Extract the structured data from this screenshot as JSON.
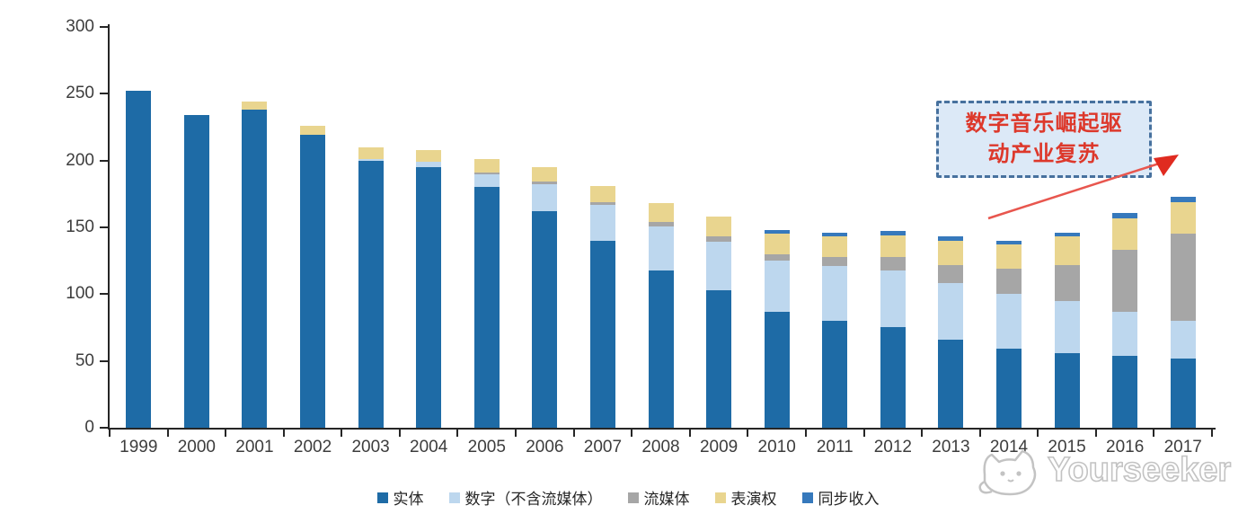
{
  "chart_data": {
    "type": "bar",
    "stacked": true,
    "title": "",
    "xlabel": "",
    "ylabel": "",
    "categories": [
      "1999",
      "2000",
      "2001",
      "2002",
      "2003",
      "2004",
      "2005",
      "2006",
      "2007",
      "2008",
      "2009",
      "2010",
      "2011",
      "2012",
      "2013",
      "2014",
      "2015",
      "2016",
      "2017"
    ],
    "series": [
      {
        "name": "实体",
        "color": "#1e6ba6",
        "values": [
          252,
          234,
          238,
          219,
          200,
          195,
          180,
          162,
          140,
          118,
          103,
          87,
          80,
          75,
          66,
          59,
          56,
          54,
          52
        ]
      },
      {
        "name": "数字（不含流媒体）",
        "color": "#bdd7ee",
        "values": [
          0,
          0,
          0,
          0,
          1,
          4,
          10,
          20,
          27,
          33,
          36,
          38,
          41,
          43,
          42,
          41,
          39,
          33,
          28
        ]
      },
      {
        "name": "流媒体",
        "color": "#a6a6a6",
        "values": [
          0,
          0,
          0,
          0,
          0,
          0,
          1,
          2,
          2,
          3,
          4,
          5,
          7,
          10,
          14,
          19,
          27,
          46,
          65
        ]
      },
      {
        "name": "表演权",
        "color": "#e9d58f",
        "values": [
          0,
          0,
          6,
          7,
          9,
          9,
          10,
          11,
          12,
          14,
          15,
          15,
          15,
          16,
          18,
          18,
          21,
          24,
          24
        ]
      },
      {
        "name": "同步收入",
        "color": "#3679bc",
        "values": [
          0,
          0,
          0,
          0,
          0,
          0,
          0,
          0,
          0,
          0,
          0,
          3,
          3,
          3,
          3,
          3,
          3,
          4,
          4
        ]
      }
    ],
    "ylim": [
      0,
      300
    ],
    "yticks": [
      0,
      50,
      100,
      150,
      200,
      250,
      300
    ],
    "grid": false,
    "legend_position": "bottom"
  },
  "annotation": {
    "line1": "数字音乐崛起驱",
    "line2": "动产业复苏"
  },
  "watermark": {
    "brand": "Yourseeker"
  },
  "colors": {
    "axis": "#262626",
    "tick_label": "#3d3d3d",
    "annotation_text": "#dd382b",
    "annotation_border": "#47719e",
    "annotation_bg": "#dce9f7",
    "arrow": "#e8564e",
    "watermark": "#c3c3c3"
  }
}
